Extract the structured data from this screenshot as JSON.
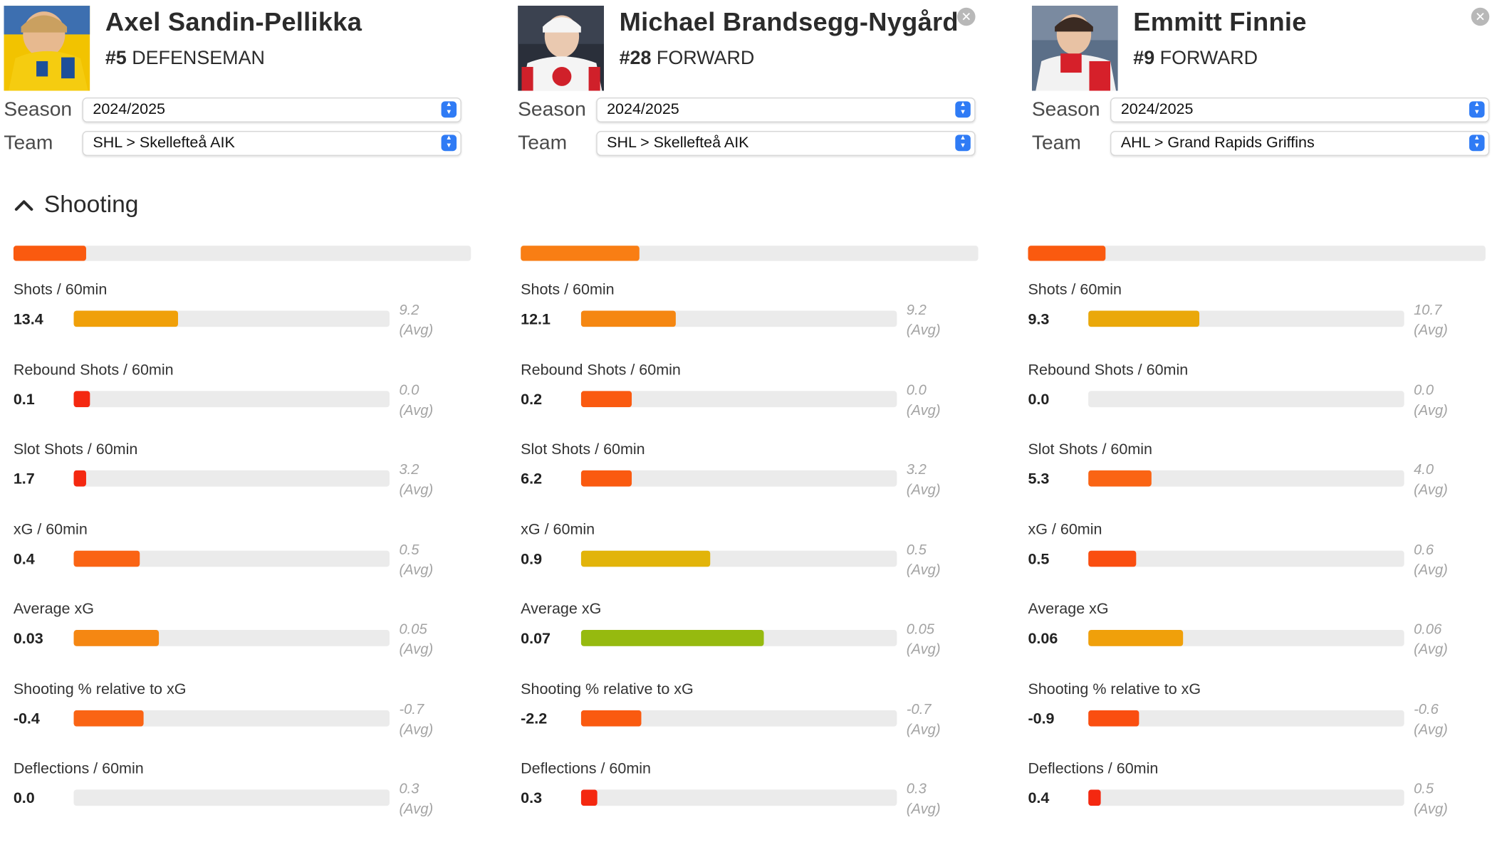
{
  "section": {
    "title": "Shooting"
  },
  "players": [
    {
      "name": "Axel Sandin-Pellikka",
      "number": "#5",
      "position": "DEFENSEMAN",
      "season_label": "Season",
      "season_value": "2024/2025",
      "team_label": "Team",
      "team_value": "SHL > Skellefteå AIK",
      "summary": {
        "fraction": 0.16,
        "color": "#fa5a0f"
      },
      "metrics": [
        {
          "label": "Shots / 60min",
          "value": "13.4",
          "avg": "9.2",
          "avg_suffix": "(Avg)",
          "fill": 0.33,
          "color": "#f0a00a"
        },
        {
          "label": "Rebound Shots / 60min",
          "value": "0.1",
          "avg": "0.0",
          "avg_suffix": "(Avg)",
          "fill": 0.05,
          "color": "#f42810"
        },
        {
          "label": "Slot Shots / 60min",
          "value": "1.7",
          "avg": "3.2",
          "avg_suffix": "(Avg)",
          "fill": 0.04,
          "color": "#f42810"
        },
        {
          "label": "xG / 60min",
          "value": "0.4",
          "avg": "0.5",
          "avg_suffix": "(Avg)",
          "fill": 0.21,
          "color": "#fa6414"
        },
        {
          "label": "Average xG",
          "value": "0.03",
          "avg": "0.05",
          "avg_suffix": "(Avg)",
          "fill": 0.27,
          "color": "#f58712"
        },
        {
          "label": "Shooting % relative to xG",
          "value": "-0.4",
          "avg": "-0.7",
          "avg_suffix": "(Avg)",
          "fill": 0.22,
          "color": "#fa6414"
        },
        {
          "label": "Deflections / 60min",
          "value": "0.0",
          "avg": "0.3",
          "avg_suffix": "(Avg)",
          "fill": 0.0,
          "color": "#f42810"
        }
      ]
    },
    {
      "name": "Michael Brandsegg-Nygård",
      "number": "#28",
      "position": "FORWARD",
      "season_label": "Season",
      "season_value": "2024/2025",
      "team_label": "Team",
      "team_value": "SHL > Skellefteå AIK",
      "summary": {
        "fraction": 0.26,
        "color": "#f97e14"
      },
      "metrics": [
        {
          "label": "Shots / 60min",
          "value": "12.1",
          "avg": "9.2",
          "avg_suffix": "(Avg)",
          "fill": 0.3,
          "color": "#f58712"
        },
        {
          "label": "Rebound Shots / 60min",
          "value": "0.2",
          "avg": "0.0",
          "avg_suffix": "(Avg)",
          "fill": 0.16,
          "color": "#fa5a10"
        },
        {
          "label": "Slot Shots / 60min",
          "value": "6.2",
          "avg": "3.2",
          "avg_suffix": "(Avg)",
          "fill": 0.16,
          "color": "#fa5a10"
        },
        {
          "label": "xG / 60min",
          "value": "0.9",
          "avg": "0.5",
          "avg_suffix": "(Avg)",
          "fill": 0.41,
          "color": "#e2b40a"
        },
        {
          "label": "Average xG",
          "value": "0.07",
          "avg": "0.05",
          "avg_suffix": "(Avg)",
          "fill": 0.58,
          "color": "#96ba0f"
        },
        {
          "label": "Shooting % relative to xG",
          "value": "-2.2",
          "avg": "-0.7",
          "avg_suffix": "(Avg)",
          "fill": 0.19,
          "color": "#fa5a10"
        },
        {
          "label": "Deflections / 60min",
          "value": "0.3",
          "avg": "0.3",
          "avg_suffix": "(Avg)",
          "fill": 0.05,
          "color": "#f42810"
        }
      ]
    },
    {
      "name": "Emmitt Finnie",
      "number": "#9",
      "position": "FORWARD",
      "season_label": "Season",
      "season_value": "2024/2025",
      "team_label": "Team",
      "team_value": "AHL > Grand Rapids Griffins",
      "summary": {
        "fraction": 0.17,
        "color": "#fa5a0f"
      },
      "metrics": [
        {
          "label": "Shots / 60min",
          "value": "9.3",
          "avg": "10.7",
          "avg_suffix": "(Avg)",
          "fill": 0.35,
          "color": "#eaa80a"
        },
        {
          "label": "Rebound Shots / 60min",
          "value": "0.0",
          "avg": "0.0",
          "avg_suffix": "(Avg)",
          "fill": 0.0,
          "color": "#f42810"
        },
        {
          "label": "Slot Shots / 60min",
          "value": "5.3",
          "avg": "4.0",
          "avg_suffix": "(Avg)",
          "fill": 0.2,
          "color": "#fa6414"
        },
        {
          "label": "xG / 60min",
          "value": "0.5",
          "avg": "0.6",
          "avg_suffix": "(Avg)",
          "fill": 0.15,
          "color": "#fa4e10"
        },
        {
          "label": "Average xG",
          "value": "0.06",
          "avg": "0.06",
          "avg_suffix": "(Avg)",
          "fill": 0.3,
          "color": "#f0a00a"
        },
        {
          "label": "Shooting % relative to xG",
          "value": "-0.9",
          "avg": "-0.6",
          "avg_suffix": "(Avg)",
          "fill": 0.16,
          "color": "#fa4e10"
        },
        {
          "label": "Deflections / 60min",
          "value": "0.4",
          "avg": "0.5",
          "avg_suffix": "(Avg)",
          "fill": 0.04,
          "color": "#f42810"
        }
      ]
    }
  ]
}
